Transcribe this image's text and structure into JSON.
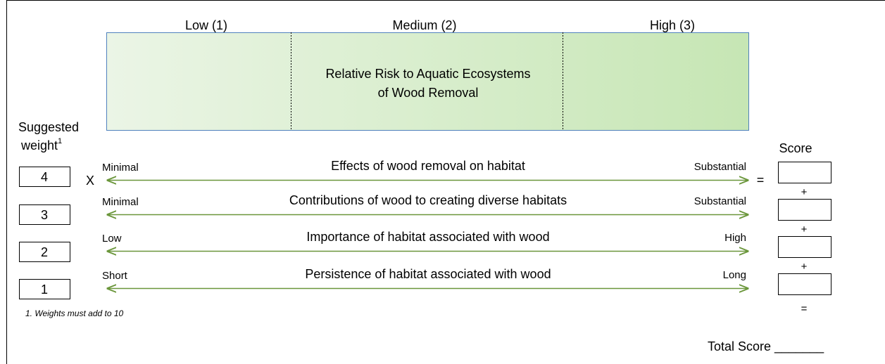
{
  "scale": {
    "levels": [
      "Low (1)",
      "Medium (2)",
      "High (3)"
    ],
    "title": [
      "Relative Risk to Aquatic Ecosystems",
      "of Wood Removal"
    ]
  },
  "weight_header": {
    "lines": [
      "Suggested",
      "weight"
    ],
    "footnote_mark": "1"
  },
  "score_header": "Score",
  "multiply": "X",
  "equals": "=",
  "plus": "+",
  "rows": [
    {
      "weight": 4,
      "low": "Minimal",
      "label": "Effects of wood removal on habitat",
      "high": "Substantial"
    },
    {
      "weight": 3,
      "low": "Minimal",
      "label": "Contributions of wood to creating diverse habitats",
      "high": "Substantial"
    },
    {
      "weight": 2,
      "low": "Low",
      "label": "Importance of habitat associated with wood",
      "high": "High"
    },
    {
      "weight": 1,
      "low": "Short",
      "label": "Persistence of habitat associated with wood",
      "high": "Long"
    }
  ],
  "footnote": "1.  Weights must add to 10",
  "total": "Total Score _______"
}
